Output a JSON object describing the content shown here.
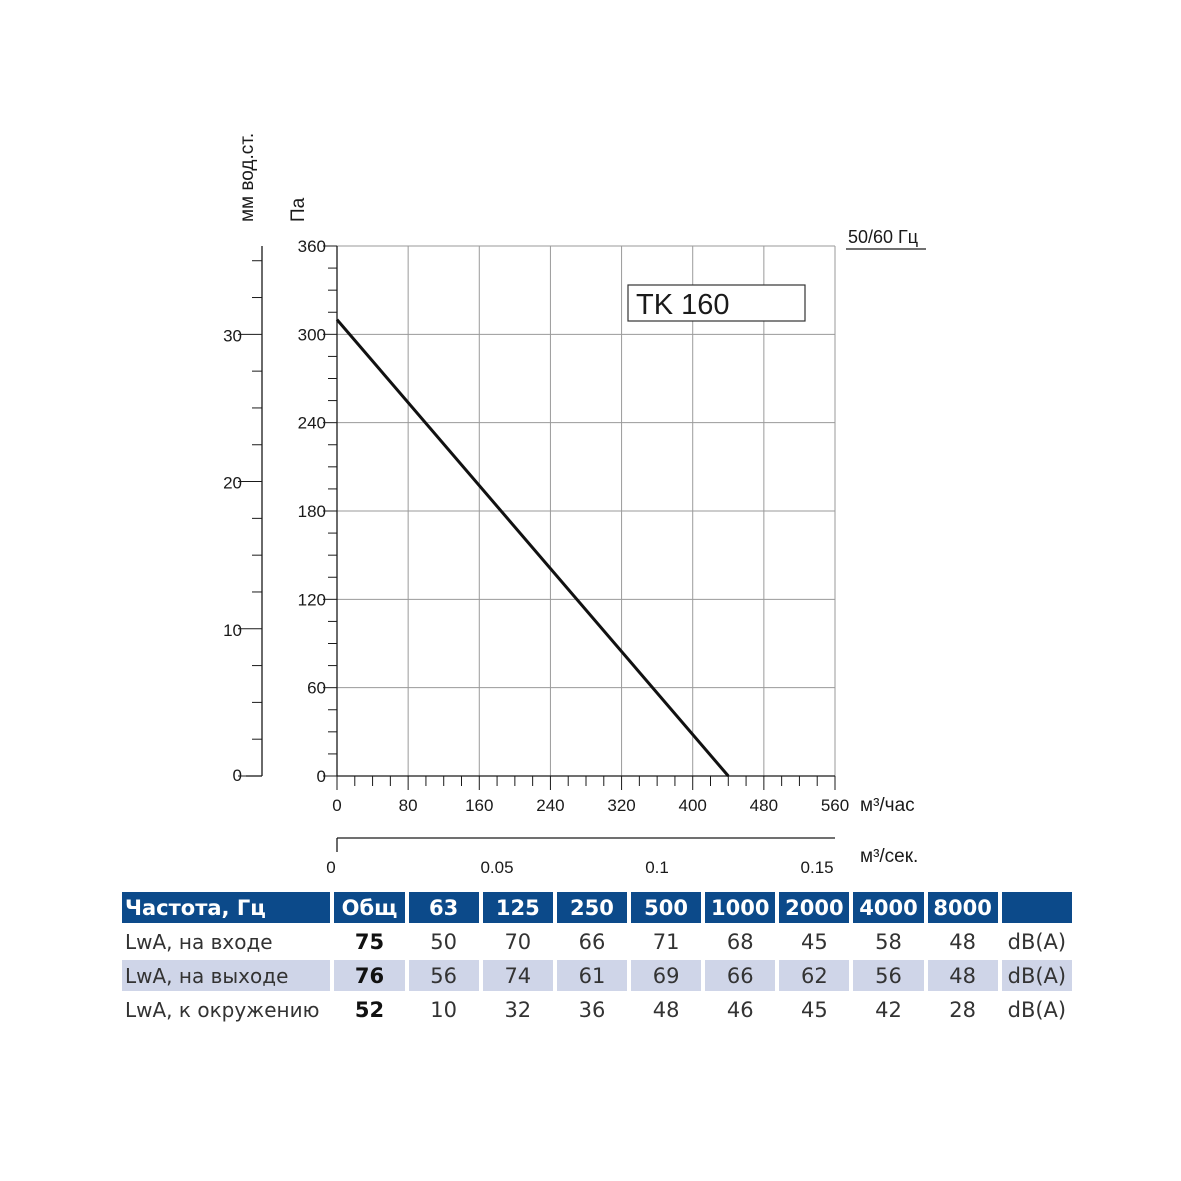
{
  "chart_data": {
    "type": "line",
    "label_box": "TK 160",
    "frequency_note": "50/60 Гц",
    "y_primary": {
      "label": "Па",
      "ticks": [
        "0",
        "60",
        "120",
        "180",
        "240",
        "300",
        "360"
      ],
      "range": [
        0,
        360
      ]
    },
    "y_secondary": {
      "label": "мм вод.ст.",
      "ticks": [
        "0",
        "10",
        "20",
        "30"
      ],
      "range": [
        0,
        36
      ]
    },
    "x_primary": {
      "unit": "м³/час",
      "ticks": [
        "0",
        "80",
        "160",
        "240",
        "320",
        "400",
        "480",
        "560"
      ],
      "range": [
        0,
        560
      ]
    },
    "x_secondary": {
      "unit": "м³/сек.",
      "ticks": [
        "0",
        "0.05",
        "0.1",
        "0.15"
      ],
      "range": [
        0,
        0.1556
      ]
    },
    "series": [
      {
        "x": [
          0,
          440
        ],
        "y": [
          310,
          0
        ]
      }
    ],
    "grid": true
  },
  "noise_table": {
    "headers": [
      "Частота, Гц",
      "Общ",
      "63",
      "125",
      "250",
      "500",
      "1000",
      "2000",
      "4000",
      "8000",
      ""
    ],
    "rows": [
      {
        "label": "LwA, на входе",
        "total": "75",
        "values": [
          "50",
          "70",
          "66",
          "71",
          "68",
          "45",
          "58",
          "48"
        ],
        "unit": "dB(A)"
      },
      {
        "label": "LwA, на выходе",
        "total": "76",
        "values": [
          "56",
          "74",
          "61",
          "69",
          "66",
          "62",
          "56",
          "48"
        ],
        "unit": "dB(A)"
      },
      {
        "label": "LwA, к окружению",
        "total": "52",
        "values": [
          "10",
          "32",
          "36",
          "48",
          "46",
          "45",
          "42",
          "28"
        ],
        "unit": "dB(A)"
      }
    ]
  }
}
